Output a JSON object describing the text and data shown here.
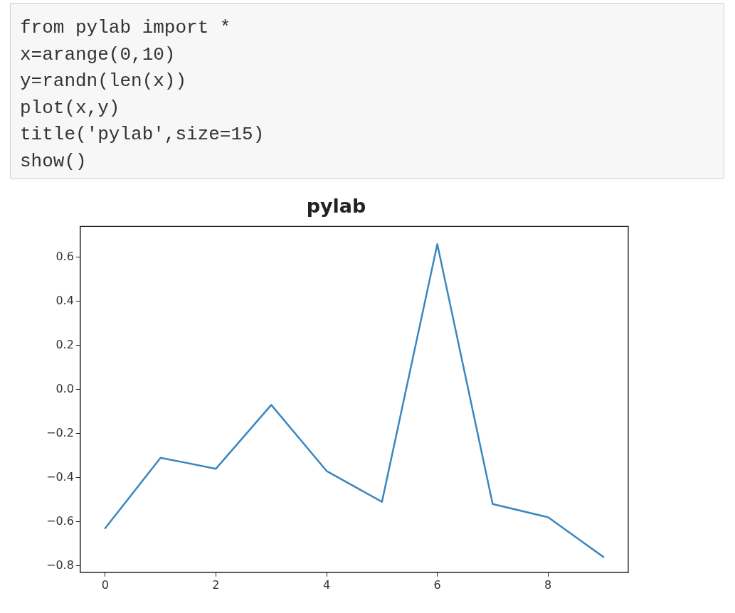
{
  "chart_data": {
    "type": "line",
    "title": "pylab",
    "annotations": [
      "from pylab import *",
      "x=arange(0,10)",
      "y=randn(len(x))",
      "plot(x,y)",
      "title('pylab',size=15)",
      "show()"
    ],
    "x": [
      0,
      1,
      2,
      3,
      4,
      5,
      6,
      7,
      8,
      9
    ],
    "series": [
      {
        "color": "#3a87c0",
        "values": [
          -0.63,
          -0.31,
          -0.36,
          -0.07,
          -0.37,
          -0.51,
          0.66,
          -0.52,
          -0.58,
          -0.76
        ]
      }
    ],
    "xlim": [
      -0.45,
      9.45
    ],
    "xticks": [
      0,
      2,
      4,
      6,
      8
    ],
    "ylim": [
      -0.83,
      0.74
    ],
    "yticks": [
      {
        "value": -0.8,
        "label": "−0.8"
      },
      {
        "value": -0.6,
        "label": "−0.6"
      },
      {
        "value": -0.4,
        "label": "−0.4"
      },
      {
        "value": -0.2,
        "label": "−0.2"
      },
      {
        "value": 0,
        "label": "0.0"
      },
      {
        "value": 0.2,
        "label": "0.2"
      },
      {
        "value": 0.4,
        "label": "0.4"
      },
      {
        "value": 0.6,
        "label": "0.6"
      }
    ],
    "grid": false,
    "legend": false,
    "marker": "none",
    "line_style": "solid"
  }
}
